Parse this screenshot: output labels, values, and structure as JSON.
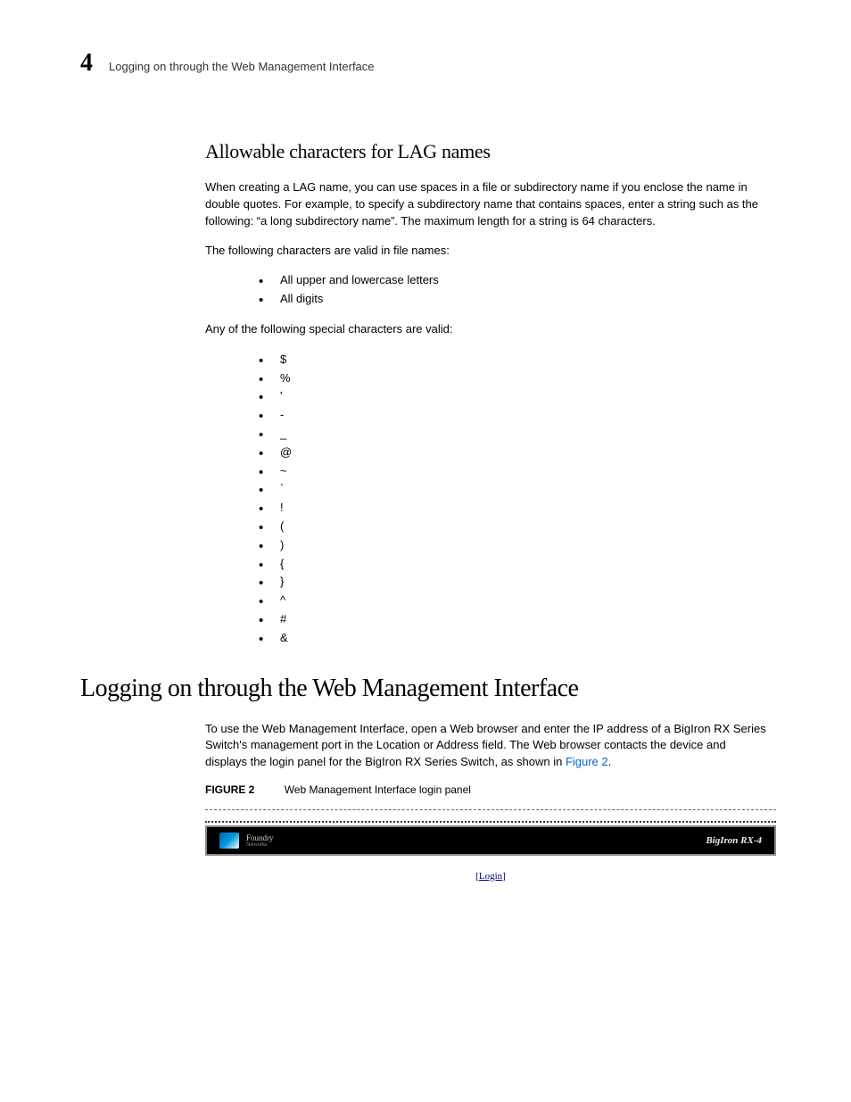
{
  "header": {
    "chapter_number": "4",
    "title": "Logging on through the Web Management Interface"
  },
  "section1": {
    "heading": "Allowable characters for LAG names",
    "paragraph1": "When creating a LAG name, you can use spaces in a file or subdirectory name if you enclose the name in double quotes. For example, to specify a subdirectory name that contains spaces, enter a string such as the following: “a long subdirectory name”. The maximum length for a string is 64 characters.",
    "paragraph2": "The following characters are valid in file names:",
    "list1": [
      "All upper and lowercase letters",
      "All digits"
    ],
    "paragraph3": "Any of the following special characters are valid:",
    "list2": [
      "$",
      "%",
      "'",
      "-",
      "_",
      "@",
      "~",
      "`",
      "!",
      "(",
      ")",
      "{",
      "}",
      "^",
      "#",
      "&"
    ]
  },
  "section2": {
    "heading": "Logging on through the Web Management Interface",
    "paragraph1_part1": "To use the Web Management Interface, open a Web browser and enter the IP address of a BigIron RX Series Switch's management port in the Location or Address field. The Web browser contacts the device and displays the login panel for the BigIron RX Series Switch, as shown in ",
    "figure_link": "Figure 2",
    "paragraph1_part2": ".",
    "figure_label": "FIGURE 2",
    "figure_caption": "Web Management Interface login panel",
    "login_panel": {
      "logo_brand": "Foundry",
      "logo_sub": "Networks",
      "device": "BigIron RX-4",
      "login_text": "Login"
    }
  },
  "colors": {
    "text": "#000000",
    "link": "#0066cc",
    "header_bg": "#000000",
    "logo_text": "#cccccc",
    "device_text": "#eeeeee"
  },
  "fonts": {
    "body_family": "Arial, Helvetica, sans-serif",
    "heading_family": "Georgia, 'Times New Roman', serif",
    "body_size_pt": 10,
    "sub_heading_size_pt": 16,
    "main_heading_size_pt": 21
  }
}
